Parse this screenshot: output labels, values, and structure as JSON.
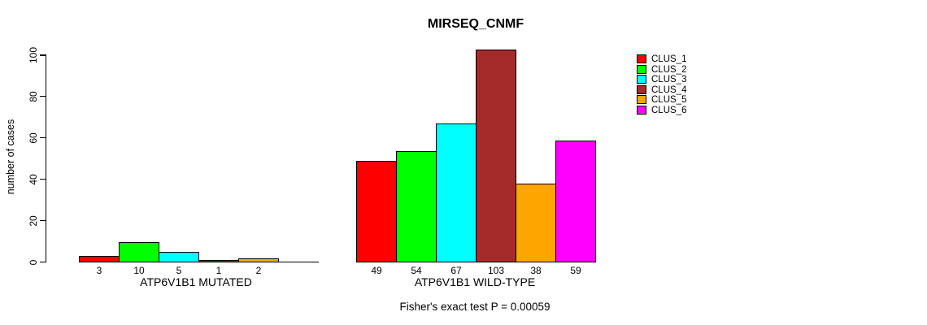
{
  "title": "MIRSEQ_CNMF",
  "colors": {
    "background": "#FFFFFF",
    "axis": "#000000",
    "text": "#000000"
  },
  "chart_data": {
    "type": "bar",
    "title": "MIRSEQ_CNMF",
    "ylabel": "number of cases",
    "xlabel": "",
    "ylim": [
      0,
      100
    ],
    "yticks": [
      0,
      20,
      40,
      60,
      80,
      100
    ],
    "grid": false,
    "legend_position": "right",
    "groups": [
      {
        "label": "ATP6V1B1 MUTATED",
        "bar_labels": [
          "3",
          "10",
          "5",
          "1",
          "2",
          ""
        ]
      },
      {
        "label": "ATP6V1B1 WILD-TYPE",
        "bar_labels": [
          "49",
          "54",
          "67",
          "103",
          "38",
          "59"
        ]
      }
    ],
    "series": [
      {
        "name": "CLUS_1",
        "color": "#FF0000",
        "values": [
          3,
          49
        ]
      },
      {
        "name": "CLUS_2",
        "color": "#00FF00",
        "values": [
          10,
          54
        ]
      },
      {
        "name": "CLUS_3",
        "color": "#00FFFF",
        "values": [
          5,
          67
        ]
      },
      {
        "name": "CLUS_4",
        "color": "#A52A2A",
        "values": [
          1,
          103
        ]
      },
      {
        "name": "CLUS_5",
        "color": "#FFA500",
        "values": [
          2,
          38
        ]
      },
      {
        "name": "CLUS_6",
        "color": "#FF00FF",
        "values": [
          0,
          59
        ]
      }
    ],
    "annotation": "Fisher's exact test P = 0.00059"
  }
}
